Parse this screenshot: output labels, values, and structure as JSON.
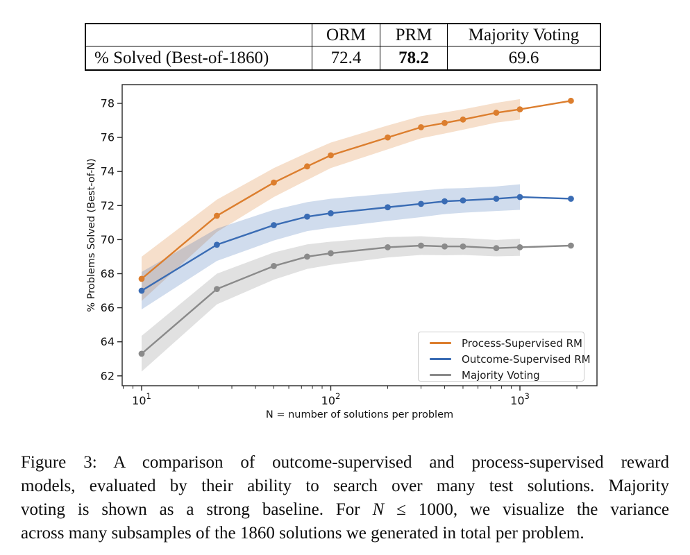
{
  "table": {
    "col_headers": [
      "",
      "ORM",
      "PRM",
      "Majority Voting"
    ],
    "row_label": "% Solved (Best-of-1860)",
    "values": [
      "72.4",
      "78.2",
      "69.6"
    ],
    "bold_value_index": 1
  },
  "chart_data": {
    "type": "line",
    "x_scale": "log",
    "x": [
      10,
      25,
      50,
      75,
      100,
      200,
      300,
      400,
      500,
      750,
      1000,
      1860
    ],
    "series": [
      {
        "name": "Process-Supervised RM",
        "color": "#dc7e2e",
        "band_opacity": 0.25,
        "values": [
          67.7,
          71.4,
          73.35,
          74.3,
          74.95,
          76.0,
          76.6,
          76.85,
          77.05,
          77.45,
          77.65,
          78.15
        ],
        "band_half_width": [
          1.3,
          0.95,
          0.85,
          0.8,
          0.75,
          0.7,
          0.65,
          0.62,
          0.6,
          0.58,
          0.6
        ]
      },
      {
        "name": "Outcome-Supervised RM",
        "color": "#3a6cb4",
        "band_opacity": 0.24,
        "values": [
          67.0,
          69.7,
          70.85,
          71.35,
          71.55,
          71.9,
          72.1,
          72.25,
          72.3,
          72.4,
          72.5,
          72.4
        ],
        "band_half_width": [
          1.1,
          0.95,
          0.9,
          0.85,
          0.85,
          0.8,
          0.78,
          0.75,
          0.72,
          0.72,
          0.75
        ]
      },
      {
        "name": "Majority Voting",
        "color": "#8a8a8a",
        "band_opacity": 0.26,
        "values": [
          63.3,
          67.1,
          68.45,
          69.0,
          69.2,
          69.55,
          69.65,
          69.6,
          69.6,
          69.5,
          69.55,
          69.65
        ],
        "band_half_width": [
          1.05,
          0.9,
          0.8,
          0.72,
          0.68,
          0.6,
          0.55,
          0.52,
          0.5,
          0.48,
          0.5
        ]
      }
    ],
    "band_note": "variance bands shown for N ≤ 1000 only",
    "xlabel": "N = number of solutions per problem",
    "ylabel": "% Problems Solved (Best-of-N)",
    "yticks": [
      62,
      64,
      66,
      68,
      70,
      72,
      74,
      76,
      78
    ],
    "xticks": [
      {
        "value": 10,
        "base": "10",
        "exp": "1"
      },
      {
        "value": 100,
        "base": "10",
        "exp": "2"
      },
      {
        "value": 1000,
        "base": "10",
        "exp": "3"
      }
    ],
    "xlim": [
      7.9,
      2560
    ],
    "ylim": [
      61.4,
      79.1
    ],
    "grid": false,
    "legend_position": "lower right"
  },
  "caption": {
    "lines": [
      [
        {
          "t": "Figure 3: A comparison of outcome-supervised and process-supervised reward"
        }
      ],
      [
        {
          "t": "models, evaluated by their ability to search over many test solutions. Majority"
        }
      ],
      [
        {
          "t": "voting is shown as a strong baseline. For "
        },
        {
          "t": "N",
          "i": true
        },
        {
          "t": " ≤ 1000, we visualize the variance"
        }
      ],
      [
        {
          "t": "across many subsamples of the 1860 solutions we generated in total per problem."
        }
      ]
    ]
  }
}
